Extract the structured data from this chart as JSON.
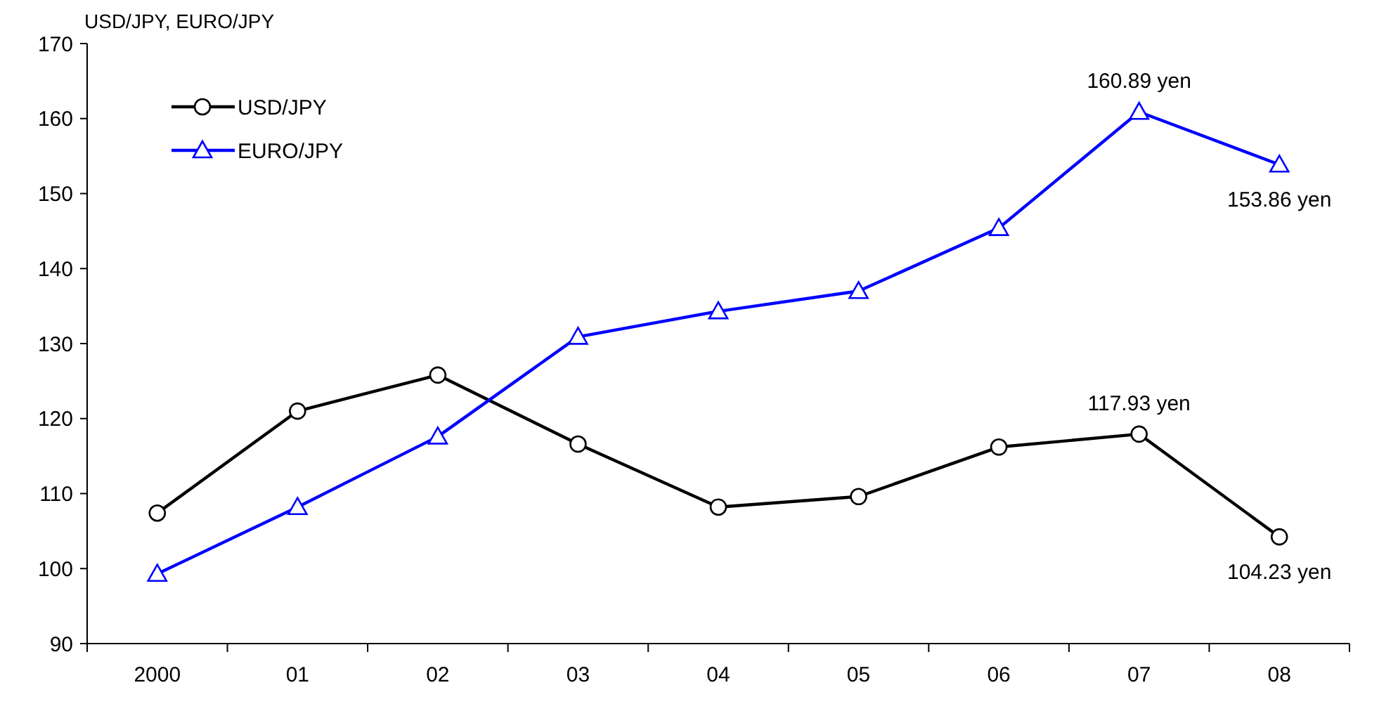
{
  "chart_data": {
    "type": "line",
    "ylabel": "USD/JPY, EURO/JPY",
    "categories": [
      "2000",
      "01",
      "02",
      "03",
      "04",
      "05",
      "06",
      "07",
      "08"
    ],
    "series": [
      {
        "name": "USD/JPY",
        "color": "#000000",
        "marker": "circle",
        "values": [
          107.4,
          121.0,
          125.8,
          116.6,
          108.2,
          109.6,
          116.2,
          117.93,
          104.23
        ],
        "value_labels": [
          null,
          null,
          null,
          null,
          null,
          null,
          null,
          "117.93 yen",
          "104.23 yen"
        ]
      },
      {
        "name": "EURO/JPY",
        "color": "#0000ff",
        "marker": "triangle",
        "values": [
          99.3,
          108.2,
          117.6,
          130.9,
          134.3,
          137.0,
          145.4,
          160.89,
          153.86
        ],
        "value_labels": [
          null,
          null,
          null,
          null,
          null,
          null,
          null,
          "160.89 yen",
          "153.86 yen"
        ]
      }
    ],
    "ylim": [
      90,
      170
    ],
    "yticks": [
      90,
      100,
      110,
      120,
      130,
      140,
      150,
      160,
      170
    ],
    "grid": false,
    "legend": "top left"
  }
}
